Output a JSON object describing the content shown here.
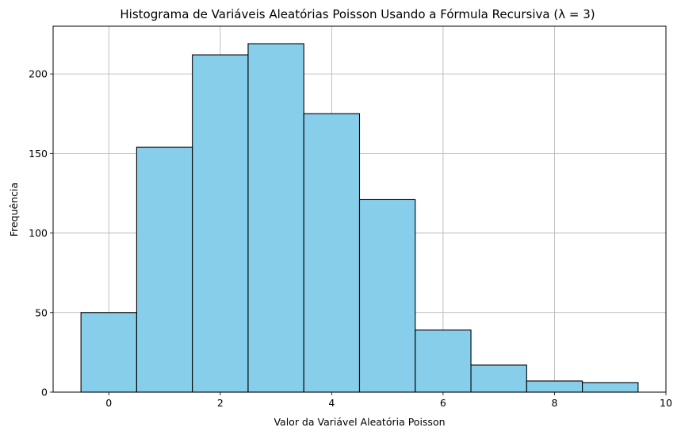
{
  "chart_data": {
    "type": "bar",
    "title": "Histograma de Variáveis Aleatórias Poisson Usando a Fórmula Recursiva (λ = 3)",
    "xlabel": "Valor da Variável Aleatória Poisson",
    "ylabel": "Frequência",
    "x": [
      0,
      1,
      2,
      3,
      4,
      5,
      6,
      7,
      8,
      9
    ],
    "values": [
      50,
      154,
      212,
      219,
      175,
      121,
      39,
      17,
      7,
      6
    ],
    "bin_edges": [
      -0.5,
      0.5,
      1.5,
      2.5,
      3.5,
      4.5,
      5.5,
      6.5,
      7.5,
      8.5,
      9.5
    ],
    "xlim": [
      -1,
      10
    ],
    "ylim": [
      0,
      230
    ],
    "xticks": [
      "0",
      "2",
      "4",
      "6",
      "8",
      "10"
    ],
    "yticks": [
      "0",
      "50",
      "100",
      "150",
      "200"
    ],
    "grid": true,
    "bar_color": "#87ceeb",
    "edge_color": "#000000",
    "grid_color": "#b0b0b0"
  }
}
